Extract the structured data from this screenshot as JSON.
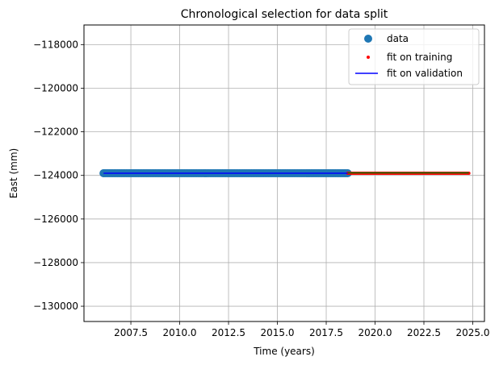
{
  "chart_data": {
    "type": "scatter",
    "title": "Chronological selection for data split",
    "xlabel": "Time (years)",
    "ylabel": "East (mm)",
    "xlim": [
      2005.1,
      2025.6
    ],
    "ylim": [
      -130700,
      -117100
    ],
    "x_ticks": [
      2007.5,
      2010.0,
      2012.5,
      2015.0,
      2017.5,
      2020.0,
      2022.5,
      2025.0
    ],
    "x_tick_labels": [
      "2007.5",
      "2010.0",
      "2012.5",
      "2015.0",
      "2017.5",
      "2020.0",
      "2022.5",
      "2025.0"
    ],
    "y_ticks": [
      -118000,
      -120000,
      -122000,
      -124000,
      -126000,
      -128000,
      -130000
    ],
    "y_tick_labels": [
      "−118000",
      "−120000",
      "−122000",
      "−124000",
      "−126000",
      "−128000",
      "−130000"
    ],
    "grid": true,
    "legend_position": "top-right",
    "series": [
      {
        "name": "data",
        "kind": "scatter",
        "color": "#1f77b4",
        "x_range": [
          2006.1,
          2018.6
        ],
        "y": -123900
      },
      {
        "name": "fit on training",
        "kind": "scatter",
        "color": "#ff0000",
        "x_range": [
          2018.6,
          2024.8
        ],
        "y": -123900
      },
      {
        "name": "fit on validation",
        "kind": "line",
        "color": "#0000ff",
        "x": [
          2006.1,
          2018.6
        ],
        "y": [
          -123900,
          -123900
        ]
      },
      {
        "kind": "line",
        "color": "#008000",
        "x": [
          2018.6,
          2024.8
        ],
        "y": [
          -123880,
          -123880
        ]
      }
    ]
  }
}
